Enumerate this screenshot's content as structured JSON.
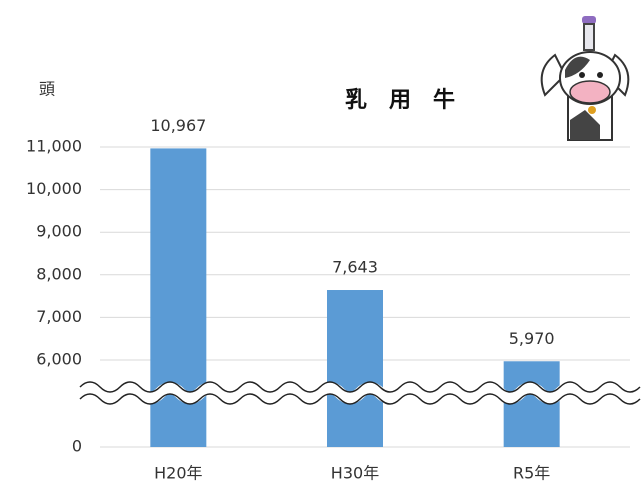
{
  "chart_data": {
    "type": "bar",
    "title": "乳　用　牛",
    "y_label": "頭",
    "categories": [
      "H20年",
      "H30年",
      "R5年"
    ],
    "values": [
      10967,
      7643,
      5970
    ],
    "value_labels": [
      "10,967",
      "7,643",
      "5,970"
    ],
    "color": "#5b9bd5",
    "ylim": [
      0,
      11000
    ],
    "yticks": [
      0,
      {
        "value": 6000,
        "label": "6,000"
      },
      {
        "value": 7000,
        "label": "7,000"
      },
      {
        "value": 8000,
        "label": "8,000"
      },
      {
        "value": 9000,
        "label": "9,000"
      },
      {
        "value": 10000,
        "label": "10,000"
      },
      {
        "value": 11000,
        "label": "11,000"
      }
    ],
    "axis_break": true,
    "grid": true
  }
}
